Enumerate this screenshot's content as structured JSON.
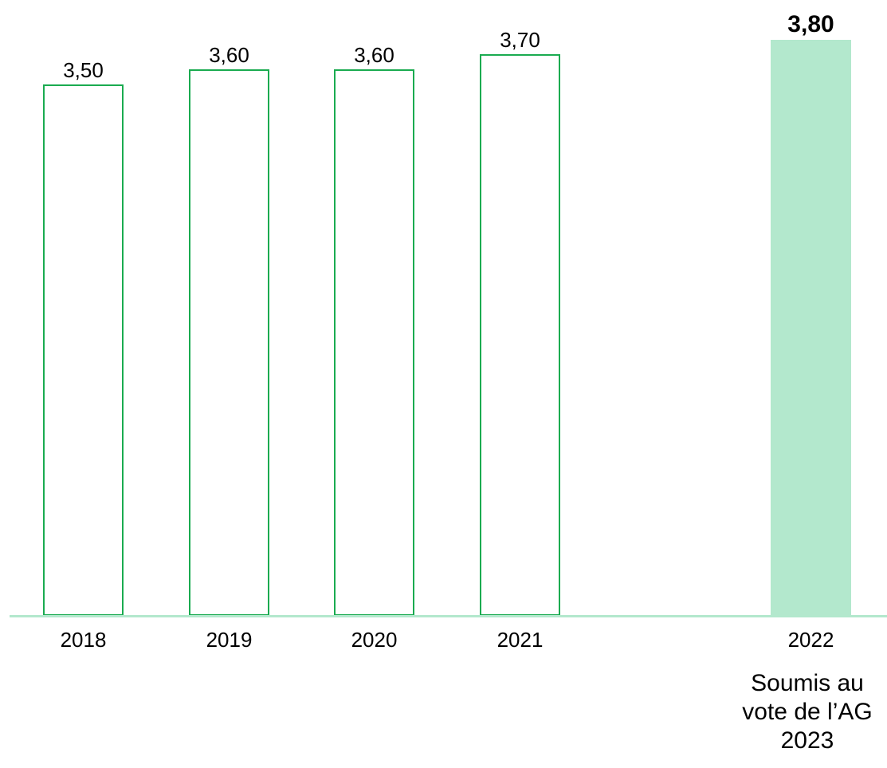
{
  "chart_data": {
    "type": "bar",
    "categories": [
      "2018",
      "2019",
      "2020",
      "2021",
      "2022"
    ],
    "values": [
      3.5,
      3.6,
      3.6,
      3.7,
      3.8
    ],
    "value_labels": [
      "3,50",
      "3,60",
      "3,60",
      "3,70",
      "3,80"
    ],
    "highlighted": [
      false,
      false,
      false,
      false,
      true
    ],
    "title": "",
    "xlabel": "",
    "ylabel": "",
    "ylim": [
      0,
      3.8
    ],
    "grid": false,
    "legend": "none",
    "annotation_lines": [
      "Soumis au",
      "vote de l’AG",
      "2023"
    ]
  },
  "colors": {
    "outline": "#1aab50",
    "highlight_fill": "#b3e8cd",
    "baseline": "#b3e8cd",
    "text": "#000000"
  }
}
